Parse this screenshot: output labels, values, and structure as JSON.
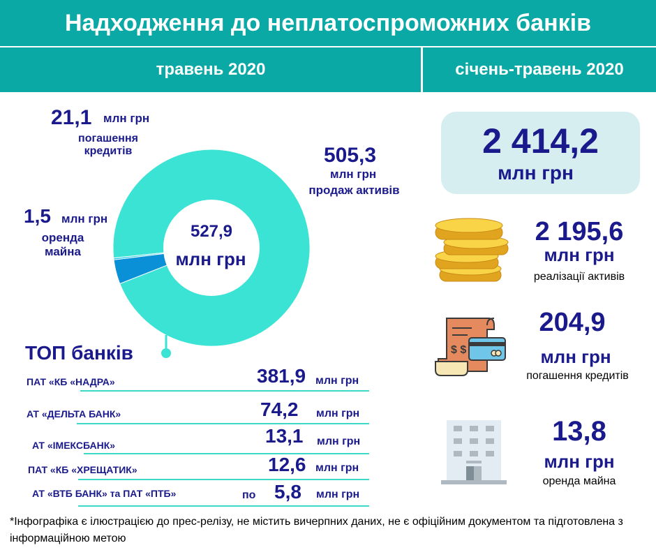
{
  "header": {
    "title": "Надходження до неплатоспроможних банків",
    "period_month": "травень 2020",
    "period_ytd": "січень-травень 2020"
  },
  "donut": {
    "center_value": "527,9",
    "center_unit": "млн грн",
    "labels": [
      {
        "value": "21,1",
        "unit": "млн грн",
        "desc_line1": "погашення",
        "desc_line2": "кредитів"
      },
      {
        "value": "505,3",
        "unit": "млн грн",
        "desc_line1": "продаж активів"
      },
      {
        "value": "1,5",
        "unit": "млн грн",
        "desc_line1": "оренда",
        "desc_line2": "майна"
      }
    ]
  },
  "chart_data": {
    "type": "pie",
    "categories": [
      "продаж активів",
      "погашення кредитів",
      "оренда майна"
    ],
    "values": [
      505.3,
      21.1,
      1.5
    ],
    "colors": [
      "#3ae3d4",
      "#0a90d6",
      "#1ecbe6"
    ],
    "start_angle_deg": 264
  },
  "ytd": {
    "total_value": "2 414,2",
    "total_unit": "млн грн",
    "items": [
      {
        "value": "2 195,6",
        "unit": "млн грн",
        "desc": "реалізації активів",
        "icon": "coins-icon"
      },
      {
        "value": "204,9",
        "unit": "млн грн",
        "desc": "погашення кредитів",
        "icon": "invoice-card-icon"
      },
      {
        "value": "13,8",
        "unit": "млн грн",
        "desc": "оренда майна",
        "icon": "building-icon"
      }
    ]
  },
  "top_banks": {
    "title": "ТОП банків",
    "rows": [
      {
        "name": "ПАТ «КБ «НАДРА»",
        "value": "381,9",
        "unit": "млн грн",
        "prefix": ""
      },
      {
        "name": "АТ «ДЕЛЬТА БАНК»",
        "value": "74,2",
        "unit": "млн грн",
        "prefix": ""
      },
      {
        "name": "АТ «ІМЕКСБАНК»",
        "value": "13,1",
        "unit": "млн грн",
        "prefix": ""
      },
      {
        "name": "ПАТ «КБ «ХРЕЩАТИК»",
        "value": "12,6",
        "unit": "млн грн",
        "prefix": ""
      },
      {
        "name": "АТ «ВТБ БАНК» та  ПАТ «ПТБ»",
        "value": "5,8",
        "unit": "млн грн",
        "prefix": "по"
      }
    ]
  },
  "footnote": "*Інфографіка є ілюстрацією до прес-релізу, не містить вичерпних даних, не є офіційним документом та підготовлена з інформаційною метою"
}
